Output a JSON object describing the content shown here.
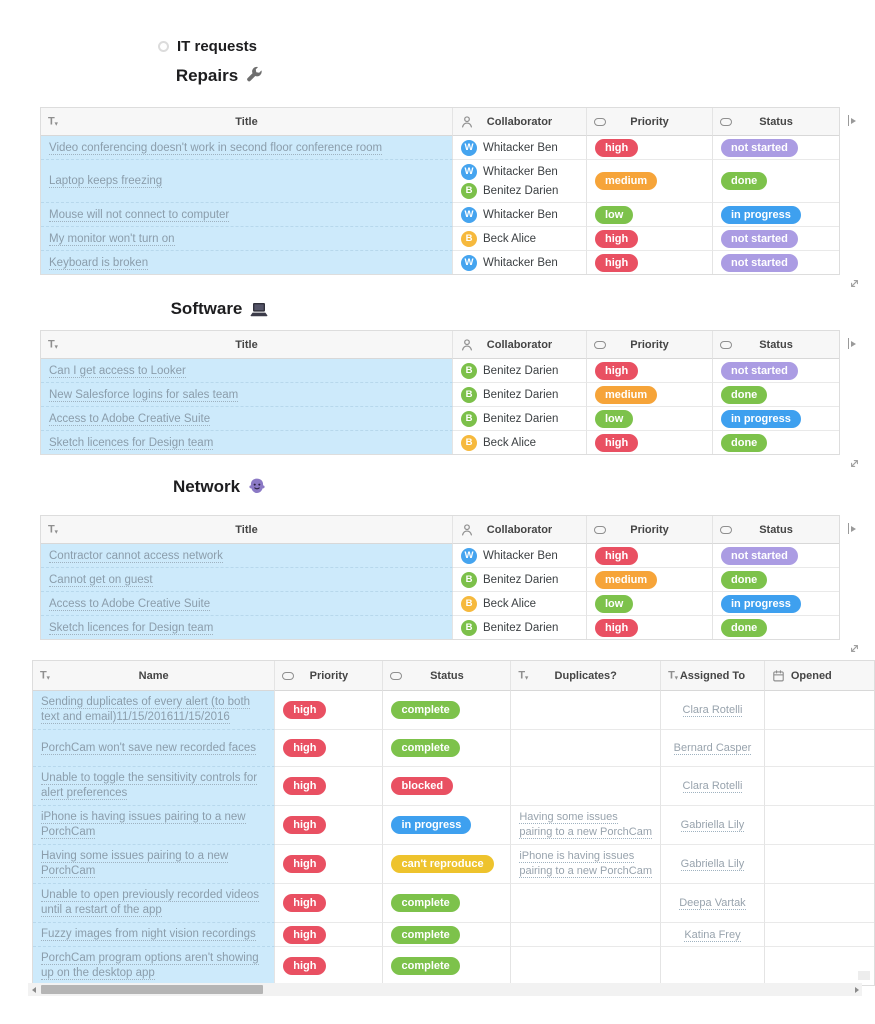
{
  "page": {
    "title": "IT requests"
  },
  "section_columns": {
    "title": "Title",
    "collaborator": "Collaborator",
    "priority": "Priority",
    "status": "Status"
  },
  "column_icons": {
    "title": "text",
    "collaborator": "person",
    "priority": "select",
    "status": "select",
    "name": "text",
    "duplicates": "text",
    "assigned_to": "text",
    "opened": "date"
  },
  "people": {
    "Whitacker Ben": {
      "initial": "W",
      "color": "#45a4ef"
    },
    "Benitez Darien": {
      "initial": "B",
      "color": "#7cc04a"
    },
    "Beck Alice": {
      "initial": "B",
      "color": "#f6b93d"
    }
  },
  "sections": [
    {
      "heading": "Repairs",
      "icon": "wrench",
      "rows": [
        {
          "title": "Video conferencing doesn't work in second floor conference room",
          "collaborators": [
            "Whitacker Ben"
          ],
          "priority": "high",
          "status": "not started"
        },
        {
          "title": "Laptop keeps freezing",
          "collaborators": [
            "Whitacker Ben",
            "Benitez Darien"
          ],
          "priority": "medium",
          "status": "done"
        },
        {
          "title": "Mouse will not connect to computer",
          "collaborators": [
            "Whitacker Ben"
          ],
          "priority": "low",
          "status": "in progress"
        },
        {
          "title": "My monitor won't turn on",
          "collaborators": [
            "Beck Alice"
          ],
          "priority": "high",
          "status": "not started"
        },
        {
          "title": "Keyboard is broken",
          "collaborators": [
            "Whitacker Ben"
          ],
          "priority": "high",
          "status": "not started"
        }
      ]
    },
    {
      "heading": "Software",
      "icon": "laptop",
      "rows": [
        {
          "title": "Can I get access to Looker",
          "collaborators": [
            "Benitez Darien"
          ],
          "priority": "high",
          "status": "not started"
        },
        {
          "title": "New Salesforce logins for sales team",
          "collaborators": [
            "Benitez Darien"
          ],
          "priority": "medium",
          "status": "done"
        },
        {
          "title": "Access to Adobe Creative Suite",
          "collaborators": [
            "Benitez Darien"
          ],
          "priority": "low",
          "status": "in progress"
        },
        {
          "title": "Sketch licences for Design team",
          "collaborators": [
            "Beck Alice"
          ],
          "priority": "high",
          "status": "done"
        }
      ]
    },
    {
      "heading": "Network",
      "icon": "monster",
      "rows": [
        {
          "title": "Contractor cannot access network",
          "collaborators": [
            "Whitacker Ben"
          ],
          "priority": "high",
          "status": "not started"
        },
        {
          "title": "Cannot get on guest",
          "collaborators": [
            "Benitez Darien"
          ],
          "priority": "medium",
          "status": "done"
        },
        {
          "title": "Access to Adobe Creative Suite",
          "collaborators": [
            "Beck Alice"
          ],
          "priority": "low",
          "status": "in progress"
        },
        {
          "title": "Sketch licences for Design team",
          "collaborators": [
            "Benitez Darien"
          ],
          "priority": "high",
          "status": "done"
        }
      ]
    }
  ],
  "issues_table": {
    "columns": {
      "name": "Name",
      "priority": "Priority",
      "status": "Status",
      "duplicates": "Duplicates?",
      "assigned_to": "Assigned To",
      "opened": "Opened"
    },
    "rows": [
      {
        "name": "Sending duplicates of every alert (to both text and email)11/15/201611/15/2016",
        "priority": "high",
        "status": "complete",
        "duplicates": "",
        "assigned_to": "Clara Rotelli"
      },
      {
        "name": "PorchCam won't save new recorded faces",
        "priority": "high",
        "status": "complete",
        "duplicates": "",
        "assigned_to": "Bernard Casper"
      },
      {
        "name": "Unable to toggle the sensitivity controls for alert preferences",
        "priority": "high",
        "status": "blocked",
        "duplicates": "",
        "assigned_to": "Clara Rotelli"
      },
      {
        "name": "iPhone is having issues pairing to a new PorchCam",
        "priority": "high",
        "status": "in progress",
        "duplicates": "Having some issues pairing to a new PorchCam",
        "assigned_to": "Gabriella Lily"
      },
      {
        "name": "Having some issues pairing to a new PorchCam",
        "priority": "high",
        "status": "can't reproduce",
        "duplicates": "iPhone is having issues pairing to a new PorchCam",
        "assigned_to": "Gabriella Lily"
      },
      {
        "name": "Unable to open previously recorded videos until a restart of the app",
        "priority": "high",
        "status": "complete",
        "duplicates": "",
        "assigned_to": "Deepa Vartak"
      },
      {
        "name": "Fuzzy images from night vision recordings",
        "priority": "high",
        "status": "complete",
        "duplicates": "",
        "assigned_to": "Katina Frey",
        "compact": true
      },
      {
        "name": "PorchCam program options aren't showing up on the desktop app",
        "priority": "high",
        "status": "complete",
        "duplicates": "",
        "assigned_to": ""
      }
    ]
  },
  "badge_colors": {
    "high": "#e95062",
    "medium": "#f6a439",
    "low": "#7dc24b",
    "not started": "#ab9ce3",
    "done": "#7dc24b",
    "in progress": "#3ea0ef",
    "complete": "#7dc24b",
    "blocked": "#e95062",
    "can't reproduce": "#eec32d"
  }
}
